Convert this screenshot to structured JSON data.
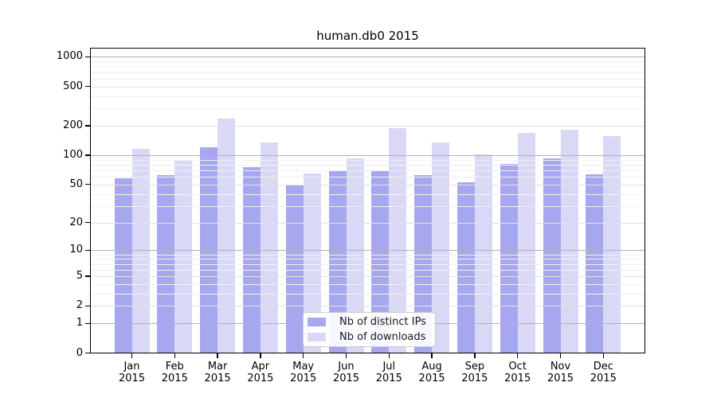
{
  "figure": {
    "title": "human.db0 2015"
  },
  "chart_data": {
    "type": "bar",
    "title": "human.db0 2015",
    "categories": [
      "Jan",
      "Feb",
      "Mar",
      "Apr",
      "May",
      "Jun",
      "Jul",
      "Aug",
      "Sep",
      "Oct",
      "Nov",
      "Dec"
    ],
    "category_year": "2015",
    "series": [
      {
        "name": "Nb of distinct IPs",
        "color": "#a7a7f0",
        "values": [
          58,
          62,
          120,
          76,
          50,
          69,
          69,
          63,
          53,
          82,
          93,
          64
        ]
      },
      {
        "name": "Nb of downloads",
        "color": "#d9d9f7",
        "values": [
          117,
          90,
          234,
          134,
          65,
          93,
          190,
          135,
          102,
          170,
          183,
          156
        ]
      }
    ],
    "y_axis": {
      "scale": "log10(value+1)",
      "tick_values": [
        0,
        1,
        2,
        5,
        10,
        20,
        50,
        100,
        200,
        500,
        1000
      ],
      "top_value": 1240
    },
    "x_axis": {
      "tick_label_lines": [
        "month",
        "year"
      ]
    },
    "gridlines": {
      "power": [
        1,
        10,
        100,
        1000
      ],
      "labeled": [
        2,
        5,
        20,
        50,
        200,
        500
      ],
      "minor": [
        3,
        4,
        6,
        7,
        8,
        9,
        30,
        40,
        60,
        70,
        80,
        90,
        300,
        400,
        600,
        700,
        800,
        900
      ]
    },
    "legend": {
      "position": "bottom-center",
      "entries": [
        "Nb of distinct IPs",
        "Nb of downloads"
      ]
    },
    "colors": {
      "bar_distinct_ips": "#a7a7f0",
      "bar_downloads": "#d9d9f7",
      "grid_power": "#b2b2b2",
      "grid_labeled": "#e2e2e2",
      "grid_minor": "#f0f0f0",
      "spine": "#000000",
      "legend_border": "#cccccc",
      "text": "#000000"
    }
  }
}
